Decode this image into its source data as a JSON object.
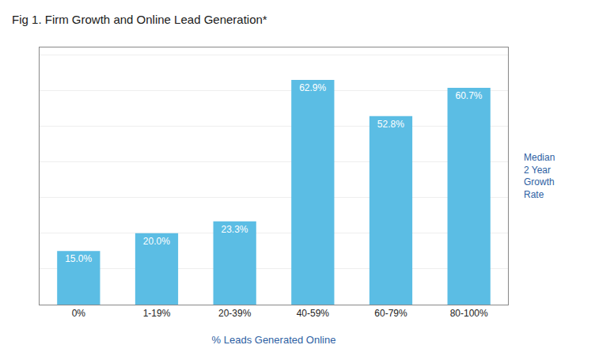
{
  "chart_data": {
    "type": "bar",
    "title": "Fig 1. Firm Growth and Online Lead Generation*",
    "xlabel": "% Leads Generated Online",
    "ylabel": "Median\n2 Year\nGrowth\nRate",
    "categories": [
      "0%",
      "1-19%",
      "20-39%",
      "40-59%",
      "60-79%",
      "80-100%"
    ],
    "values": [
      15.0,
      20.0,
      23.3,
      62.9,
      52.8,
      60.7
    ],
    "value_labels": [
      "15.0%",
      "20.0%",
      "23.3%",
      "62.9%",
      "52.8%",
      "60.7%"
    ],
    "data_labels": true,
    "color": "#5bbde4",
    "ylim": [
      0,
      72
    ],
    "yticks": [
      0,
      10,
      20,
      30,
      40,
      50,
      60,
      70
    ],
    "grid": true,
    "tick_labels": "x"
  }
}
